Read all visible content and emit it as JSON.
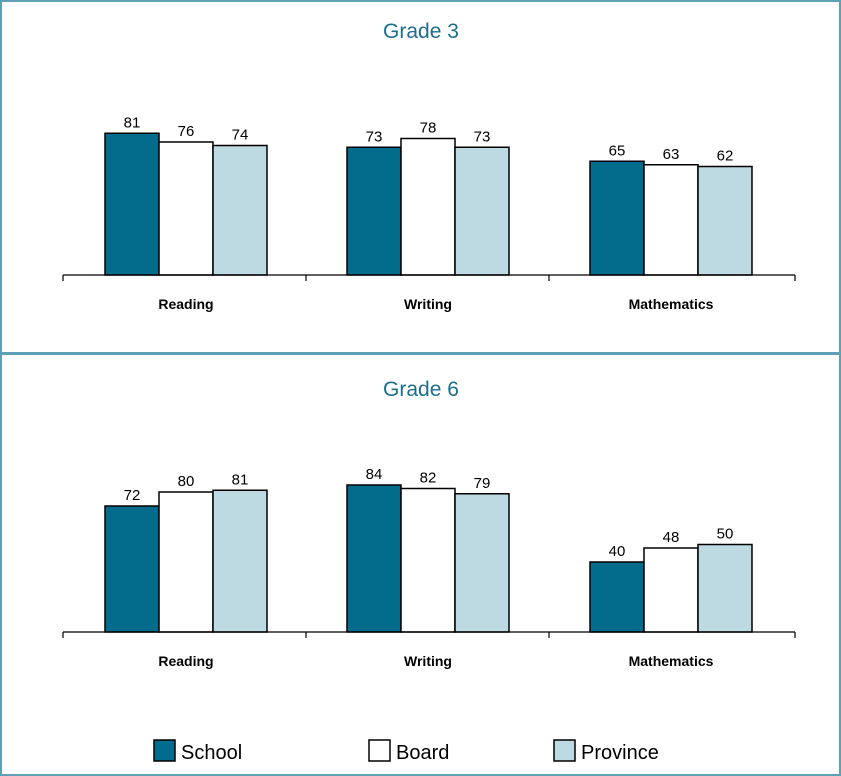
{
  "colors": {
    "School": "#036b8b",
    "Board": "#ffffff",
    "Province": "#bdd9e2"
  },
  "legend": [
    "School",
    "Board",
    "Province"
  ],
  "chart_data": [
    {
      "type": "bar",
      "title": "Grade 3",
      "categories": [
        "Reading",
        "Writing",
        "Mathematics"
      ],
      "series": [
        {
          "name": "School",
          "values": [
            81,
            73,
            65
          ]
        },
        {
          "name": "Board",
          "values": [
            76,
            78,
            63
          ]
        },
        {
          "name": "Province",
          "values": [
            74,
            73,
            62
          ]
        }
      ],
      "ylim": [
        0,
        100
      ],
      "grid": false,
      "legend_position": "bottom"
    },
    {
      "type": "bar",
      "title": "Grade 6",
      "categories": [
        "Reading",
        "Writing",
        "Mathematics"
      ],
      "series": [
        {
          "name": "School",
          "values": [
            72,
            84,
            40
          ]
        },
        {
          "name": "Board",
          "values": [
            80,
            82,
            48
          ]
        },
        {
          "name": "Province",
          "values": [
            81,
            79,
            50
          ]
        }
      ],
      "ylim": [
        0,
        100
      ],
      "grid": false,
      "legend_position": "bottom"
    }
  ]
}
